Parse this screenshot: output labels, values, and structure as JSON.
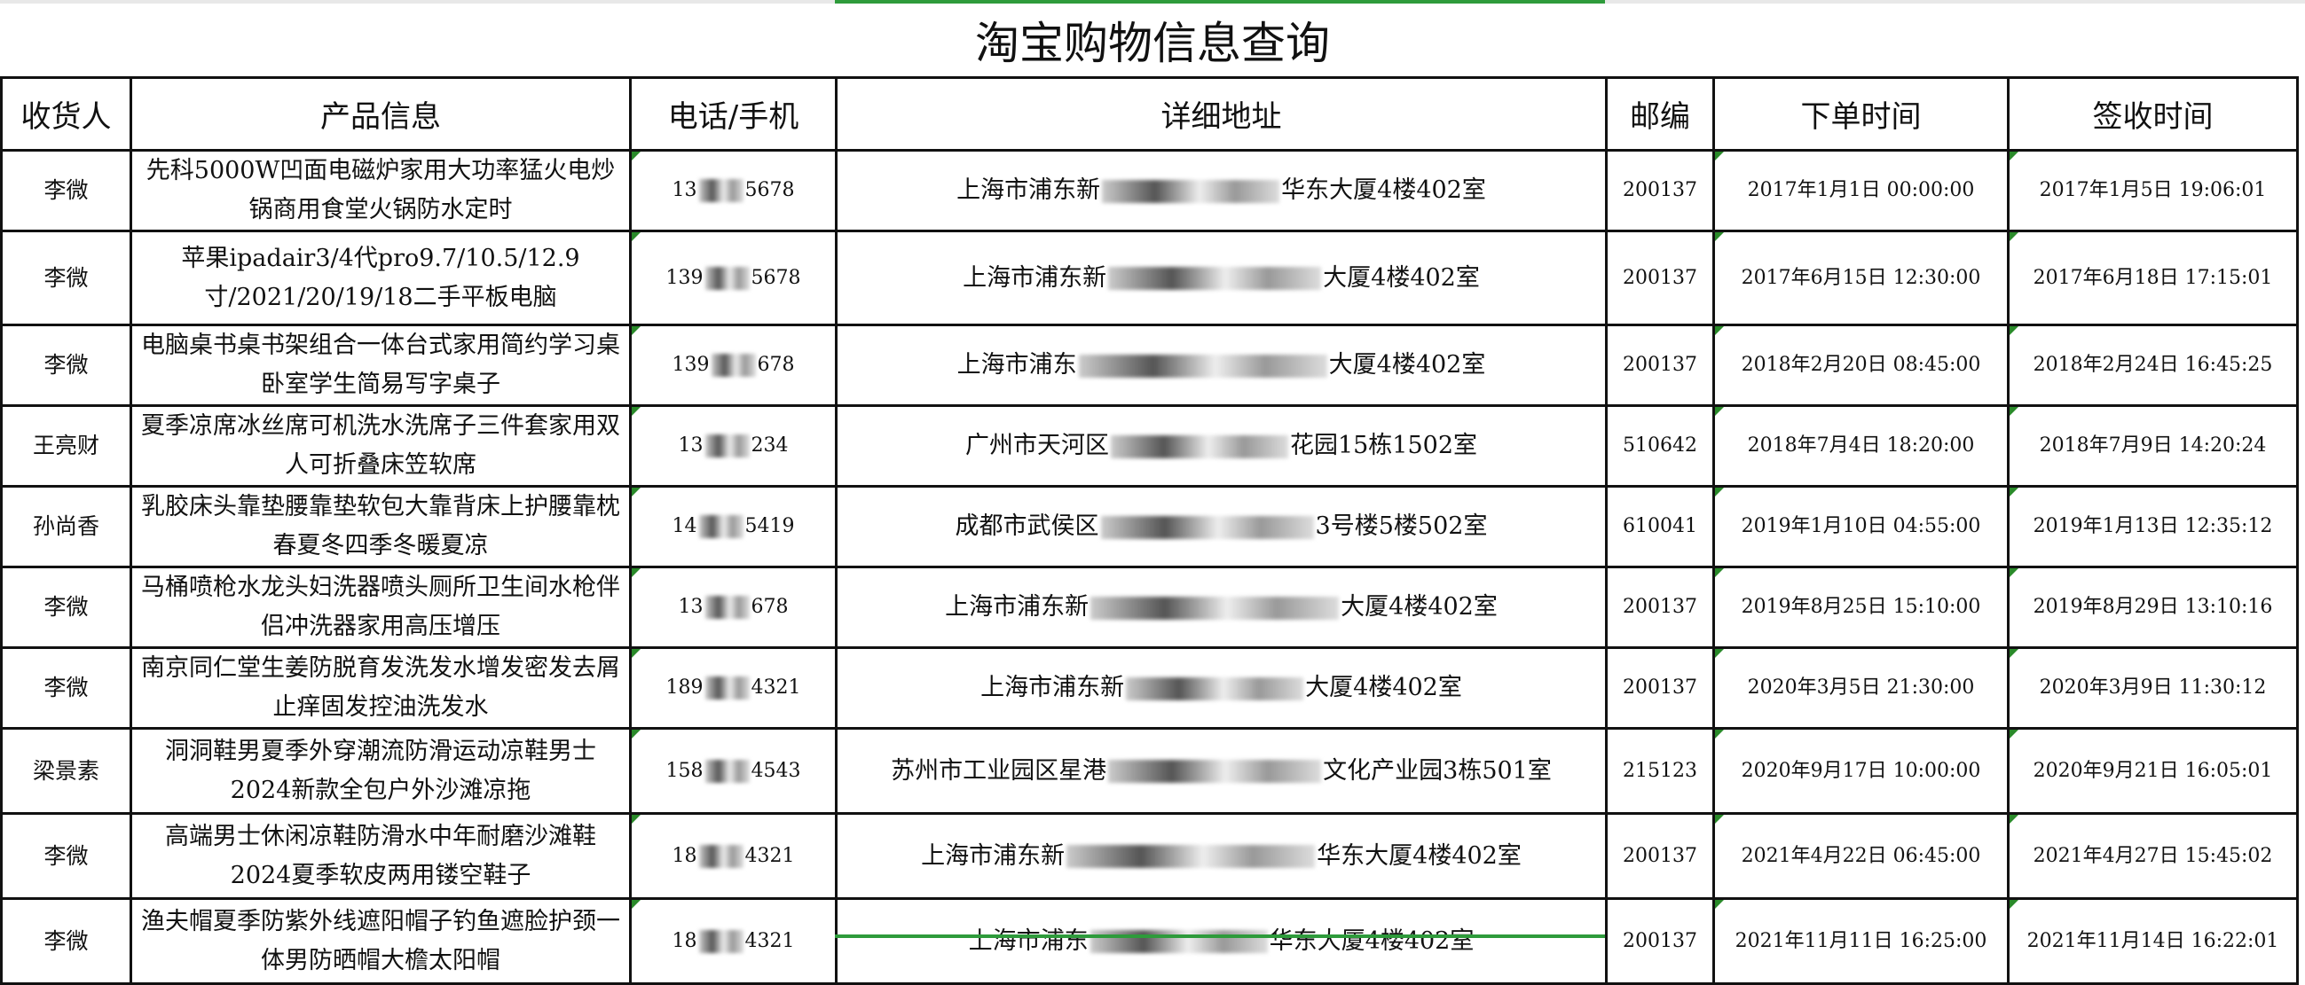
{
  "title": "淘宝购物信息查询",
  "columns": [
    "收货人",
    "产品信息",
    "电话/手机",
    "详细地址",
    "邮编",
    "下单时间",
    "签收时间"
  ],
  "rows": [
    {
      "name": "李微",
      "product": "先科5000W凹面电磁炉家用大功率猛火电炒锅商用食堂火锅防水定时",
      "phone_prefix": "13",
      "phone_suffix": "5678",
      "addr_prefix": "上海市浦东新",
      "addr_suffix": "华东大厦4楼402室",
      "zip": "200137",
      "order_time": "2017年1月1日 00:00:00",
      "sign_time": "2017年1月5日 19:06:01"
    },
    {
      "name": "李微",
      "product": "苹果ipadair3/4代pro9.7/10.5/12.9寸/2021/20/19/18二手平板电脑",
      "phone_prefix": "139",
      "phone_suffix": "5678",
      "addr_prefix": "上海市浦东新",
      "addr_suffix": "大厦4楼402室",
      "zip": "200137",
      "order_time": "2017年6月15日 12:30:00",
      "sign_time": "2017年6月18日 17:15:01"
    },
    {
      "name": "李微",
      "product": "电脑桌书桌书架组合一体台式家用简约学习桌卧室学生简易写字桌子",
      "phone_prefix": "139",
      "phone_suffix": "678",
      "addr_prefix": "上海市浦东",
      "addr_suffix": "大厦4楼402室",
      "zip": "200137",
      "order_time": "2018年2月20日 08:45:00",
      "sign_time": "2018年2月24日 16:45:25"
    },
    {
      "name": "王亮财",
      "product": "夏季凉席冰丝席可机洗水洗席子三件套家用双人可折叠床笠软席",
      "phone_prefix": "13",
      "phone_suffix": "234",
      "addr_prefix": "广州市天河区",
      "addr_suffix": "花园15栋1502室",
      "zip": "510642",
      "order_time": "2018年7月4日 18:20:00",
      "sign_time": "2018年7月9日 14:20:24"
    },
    {
      "name": "孙尚香",
      "product": "乳胶床头靠垫腰靠垫软包大靠背床上护腰靠枕春夏冬四季冬暖夏凉",
      "phone_prefix": "14",
      "phone_suffix": "5419",
      "addr_prefix": "成都市武侯区",
      "addr_suffix": "3号楼5楼502室",
      "zip": "610041",
      "order_time": "2019年1月10日 04:55:00",
      "sign_time": "2019年1月13日 12:35:12"
    },
    {
      "name": "李微",
      "product": "马桶喷枪水龙头妇洗器喷头厕所卫生间水枪伴侣冲洗器家用高压增压",
      "phone_prefix": "13",
      "phone_suffix": "678",
      "addr_prefix": "上海市浦东新",
      "addr_suffix": "大厦4楼402室",
      "zip": "200137",
      "order_time": "2019年8月25日 15:10:00",
      "sign_time": "2019年8月29日 13:10:16"
    },
    {
      "name": "李微",
      "product": "南京同仁堂生姜防脱育发洗发水增发密发去屑止痒固发控油洗发水",
      "phone_prefix": "189",
      "phone_suffix": "4321",
      "addr_prefix": "上海市浦东新",
      "addr_suffix": "大厦4楼402室",
      "zip": "200137",
      "order_time": "2020年3月5日 21:30:00",
      "sign_time": "2020年3月9日 11:30:12"
    },
    {
      "name": "梁景素",
      "product": "洞洞鞋男夏季外穿潮流防滑运动凉鞋男士2024新款全包户外沙滩凉拖",
      "phone_prefix": "158",
      "phone_suffix": "4543",
      "addr_prefix": "苏州市工业园区星港",
      "addr_suffix": "文化产业园3栋501室",
      "zip": "215123",
      "order_time": "2020年9月17日 10:00:00",
      "sign_time": "2020年9月21日 16:05:01"
    },
    {
      "name": "李微",
      "product": "高端男士休闲凉鞋防滑水中年耐磨沙滩鞋2024夏季软皮两用镂空鞋子",
      "phone_prefix": "18",
      "phone_suffix": "4321",
      "addr_prefix": "上海市浦东新",
      "addr_suffix": "华东大厦4楼402室",
      "zip": "200137",
      "order_time": "2021年4月22日 06:45:00",
      "sign_time": "2021年4月27日 15:45:02"
    },
    {
      "name": "李微",
      "product": "渔夫帽夏季防紫外线遮阳帽子钓鱼遮脸护颈一体男防晒帽大檐太阳帽",
      "phone_prefix": "18",
      "phone_suffix": "4321",
      "addr_prefix": "上海市浦东",
      "addr_suffix": "华东大厦4楼402室",
      "zip": "200137",
      "order_time": "2021年11月11日 16:25:00",
      "sign_time": "2021年11月14日 16:22:01"
    }
  ],
  "colors": {
    "selection_accent": "#2e9b3b",
    "comment_marker": "#2a8a2a"
  }
}
